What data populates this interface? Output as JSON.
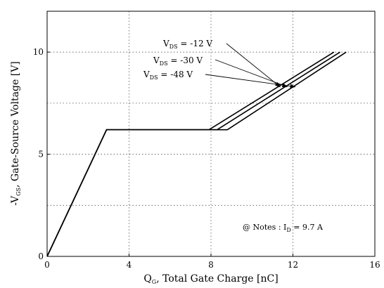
{
  "chart_data": {
    "type": "line",
    "xlabel": {
      "main": "Q",
      "sub": "G",
      "rest": ", Total Gate Charge  [nC]"
    },
    "ylabel": {
      "main": "-V",
      "sub": "GS",
      "rest": ", Gate-Source Voltage  [V]"
    },
    "xlim": [
      0,
      16
    ],
    "ylim": [
      0,
      12
    ],
    "xticks": [
      0,
      4,
      8,
      12,
      16
    ],
    "yticks": [
      0,
      5,
      10
    ],
    "grid": true,
    "series": [
      {
        "name_main": "V",
        "name_sub": "DS",
        "name_rest": " = -12 V",
        "points": [
          [
            0,
            0
          ],
          [
            2.9,
            6.2
          ],
          [
            7.9,
            6.2
          ],
          [
            14.0,
            10.0
          ]
        ]
      },
      {
        "name_main": "V",
        "name_sub": "DS",
        "name_rest": " = -30 V",
        "points": [
          [
            0,
            0
          ],
          [
            2.9,
            6.2
          ],
          [
            8.3,
            6.2
          ],
          [
            14.3,
            10.0
          ]
        ]
      },
      {
        "name_main": "V",
        "name_sub": "DS",
        "name_rest": " = -48 V",
        "points": [
          [
            0,
            0
          ],
          [
            2.9,
            6.2
          ],
          [
            8.8,
            6.2
          ],
          [
            14.6,
            10.0
          ]
        ]
      }
    ],
    "note": {
      "prefix": "@ Notes : I",
      "sub": "D",
      "rest": " = 9.7 A"
    }
  }
}
